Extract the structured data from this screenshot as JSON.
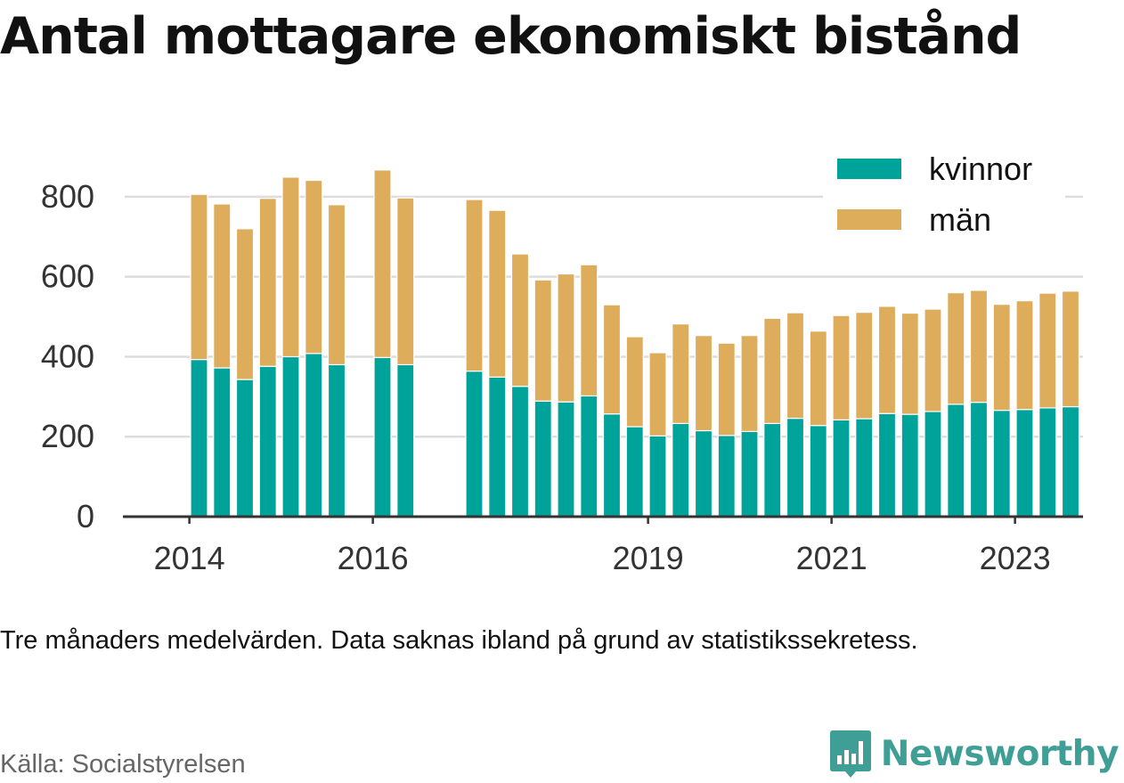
{
  "title": "Antal mottagare ekonomiskt bistånd",
  "note": "Tre månaders medelvärden. Data saknas ibland på grund av statistikssekretess.",
  "source": "Källa: Socialstyrelsen",
  "brand": "Newsworthy",
  "chart_data": {
    "type": "bar",
    "stacked": true,
    "title": "Antal mottagare ekonomiskt bistånd",
    "xlabel": "",
    "ylabel": "",
    "ylim": [
      0,
      900
    ],
    "yticks": [
      0,
      200,
      400,
      600,
      800
    ],
    "grid": true,
    "legend_position": "top-right",
    "colors": {
      "kvinnor": "#00a39a",
      "män": "#ddad5c",
      "grid": "#dddddd",
      "axis": "#333333"
    },
    "xticks": [
      {
        "label": "2014",
        "index": -0.5
      },
      {
        "label": "2016",
        "index": 7.5
      },
      {
        "label": "2019",
        "index": 19.5
      },
      {
        "label": "2021",
        "index": 27.5
      },
      {
        "label": "2023",
        "index": 35.5
      }
    ],
    "categories": [
      "2014 Q2",
      "2014 Q3",
      "2014 Q4",
      "2015 Q1",
      "2015 Q2",
      "2015 Q3",
      "2015 Q4",
      "2016 Q1",
      "2016 Q2",
      "2016 Q3",
      "2016 Q4",
      "2017 Q1",
      "2017 Q2",
      "2017 Q3",
      "2017 Q4",
      "2018 Q1",
      "2018 Q2",
      "2018 Q3",
      "2018 Q4",
      "2019 Q1",
      "2019 Q2",
      "2019 Q3",
      "2019 Q4",
      "2020 Q1",
      "2020 Q2",
      "2020 Q3",
      "2020 Q4",
      "2021 Q1",
      "2021 Q2",
      "2021 Q3",
      "2021 Q4",
      "2022 Q1",
      "2022 Q2",
      "2022 Q3",
      "2022 Q4",
      "2023 Q1",
      "2023 Q2",
      "2023 Q3",
      "2023 Q4"
    ],
    "series": [
      {
        "name": "kvinnor",
        "values": [
          393,
          372,
          343,
          376,
          400,
          408,
          380,
          null,
          398,
          380,
          null,
          null,
          364,
          349,
          326,
          289,
          287,
          302,
          257,
          225,
          202,
          233,
          215,
          203,
          213,
          233,
          246,
          228,
          242,
          245,
          258,
          256,
          263,
          281,
          286,
          266,
          268,
          272,
          275
        ]
      },
      {
        "name": "män",
        "values": [
          413,
          410,
          377,
          420,
          449,
          433,
          400,
          null,
          469,
          417,
          null,
          null,
          429,
          417,
          331,
          303,
          320,
          328,
          273,
          225,
          208,
          249,
          238,
          231,
          240,
          263,
          264,
          236,
          261,
          266,
          268,
          253,
          256,
          279,
          280,
          265,
          272,
          287,
          289
        ]
      }
    ]
  }
}
